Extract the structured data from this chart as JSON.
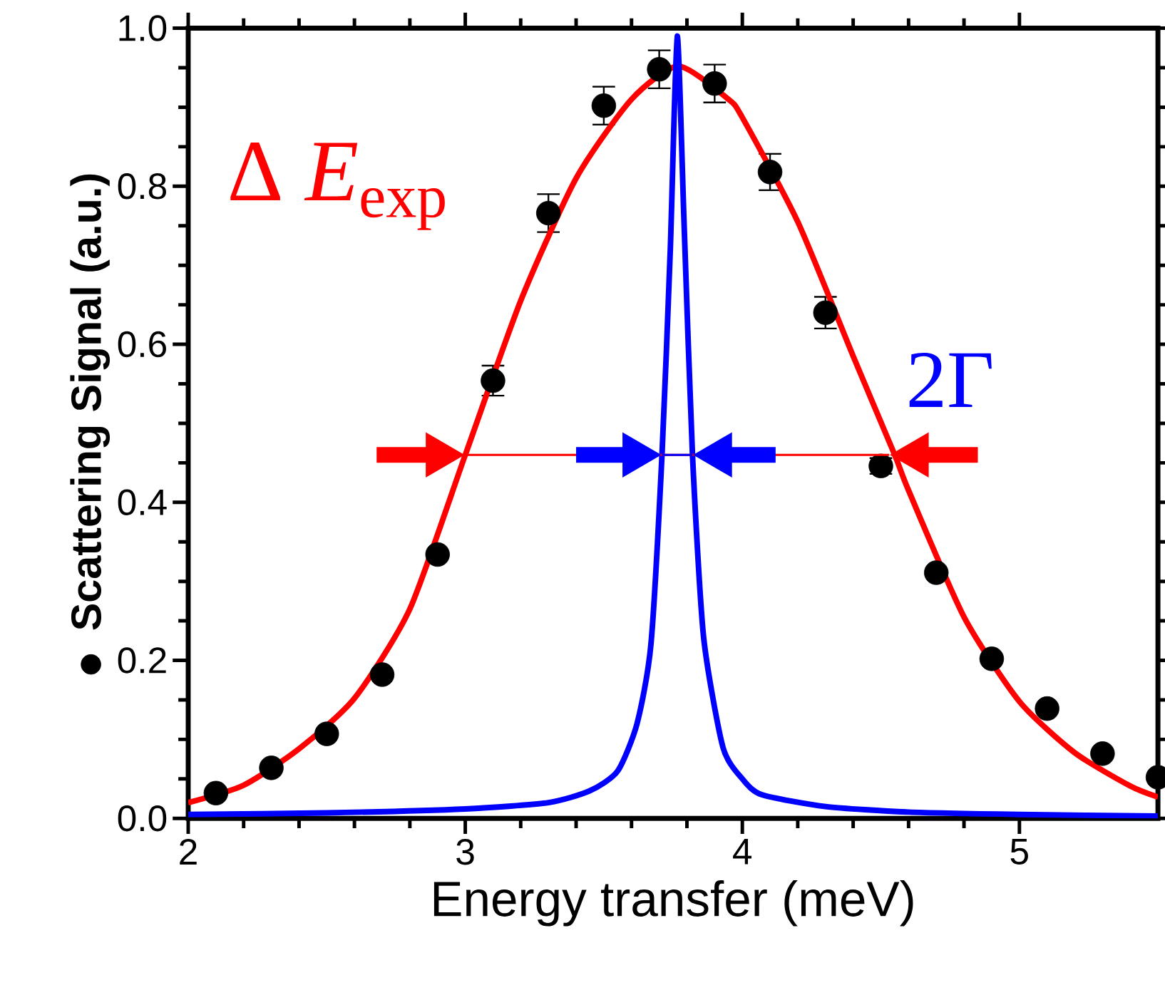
{
  "chart_data": {
    "type": "scatter",
    "xlabel": "Energy transfer (meV)",
    "ylabel": "Scattering Signal (a.u.)",
    "xlim": [
      2,
      5.5
    ],
    "ylim": [
      0,
      1
    ],
    "xticks": [
      2,
      3,
      4,
      5
    ],
    "yticks": [
      {
        "value": 0,
        "label": "0.0"
      },
      {
        "value": 0.2,
        "label": "0.2"
      },
      {
        "value": 0.4,
        "label": "0.4"
      },
      {
        "value": 0.6,
        "label": "0.6"
      },
      {
        "value": 0.8,
        "label": "0.8"
      },
      {
        "value": 1,
        "label": "1.0"
      }
    ],
    "annotations": [
      "Δ *E*$_{exp}$",
      "2Γ"
    ],
    "series": [
      {
        "color": "#000000",
        "marker": "circle",
        "x": [
          2.1,
          2.3,
          2.5,
          2.7,
          2.9,
          3.1,
          3.3,
          3.5,
          3.7,
          3.9,
          4.1,
          4.3,
          4.5,
          4.7,
          4.9,
          5.1,
          5.3,
          5.5
        ],
        "values": [
          0.032,
          0.064,
          0.107,
          0.182,
          0.334,
          0.554,
          0.766,
          0.902,
          0.948,
          0.93,
          0.818,
          0.64,
          0.446,
          0.311,
          0.202,
          0.139,
          0.082,
          0.052
        ],
        "errors": [
          null,
          null,
          null,
          null,
          null,
          0.019,
          0.024,
          0.024,
          0.024,
          0.024,
          0.023,
          0.02,
          0.01,
          null,
          null,
          null,
          null,
          null
        ]
      },
      {
        "type": "line",
        "color": "#ff0000",
        "x": [
          2.0,
          2.2,
          2.4,
          2.6,
          2.8,
          3.0,
          3.2,
          3.4,
          3.6,
          3.77,
          3.95,
          4.0,
          4.2,
          4.4,
          4.55,
          4.6,
          4.8,
          5.0,
          5.2,
          5.4,
          5.5
        ],
        "values": [
          0.02,
          0.042,
          0.088,
          0.152,
          0.265,
          0.46,
          0.655,
          0.81,
          0.91,
          0.952,
          0.91,
          0.887,
          0.755,
          0.585,
          0.46,
          0.415,
          0.255,
          0.148,
          0.083,
          0.041,
          0.027
        ]
      },
      {
        "type": "line",
        "color": "#0000ff",
        "x": [
          2.0,
          2.5,
          3.0,
          3.3,
          3.45,
          3.55,
          3.62,
          3.67,
          3.71,
          3.74,
          3.765,
          3.79,
          3.82,
          3.86,
          3.93,
          4.0,
          4.07,
          4.3,
          4.6,
          5.0,
          5.5
        ],
        "values": [
          0.005,
          0.007,
          0.012,
          0.02,
          0.035,
          0.06,
          0.12,
          0.22,
          0.46,
          0.72,
          0.99,
          0.75,
          0.46,
          0.23,
          0.09,
          0.05,
          0.03,
          0.015,
          0.008,
          0.005,
          0.003
        ]
      }
    ]
  }
}
